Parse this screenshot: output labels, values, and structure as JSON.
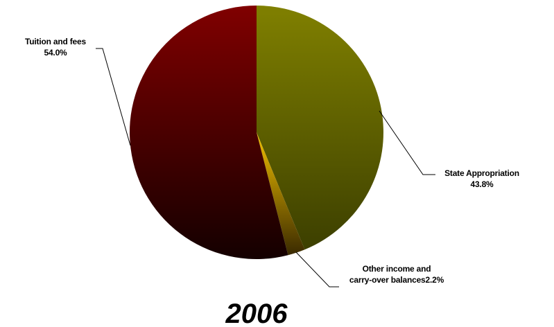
{
  "chart_data": {
    "type": "pie",
    "title": "2006",
    "slices": [
      {
        "label_lines": [
          "State Appropriation",
          "43.8%"
        ],
        "value": 43.8,
        "color_light": "#808000",
        "color_dark": "#3c3f00"
      },
      {
        "label_lines": [
          "Other income and",
          "carry-over balances2.2%"
        ],
        "value": 2.2,
        "color_light": "#f2c100",
        "color_dark": "#3a2a00"
      },
      {
        "label_lines": [
          "Tuition and fees",
          "54.0%"
        ],
        "value": 54.0,
        "color_light": "#800000",
        "color_dark": "#140000"
      }
    ]
  }
}
